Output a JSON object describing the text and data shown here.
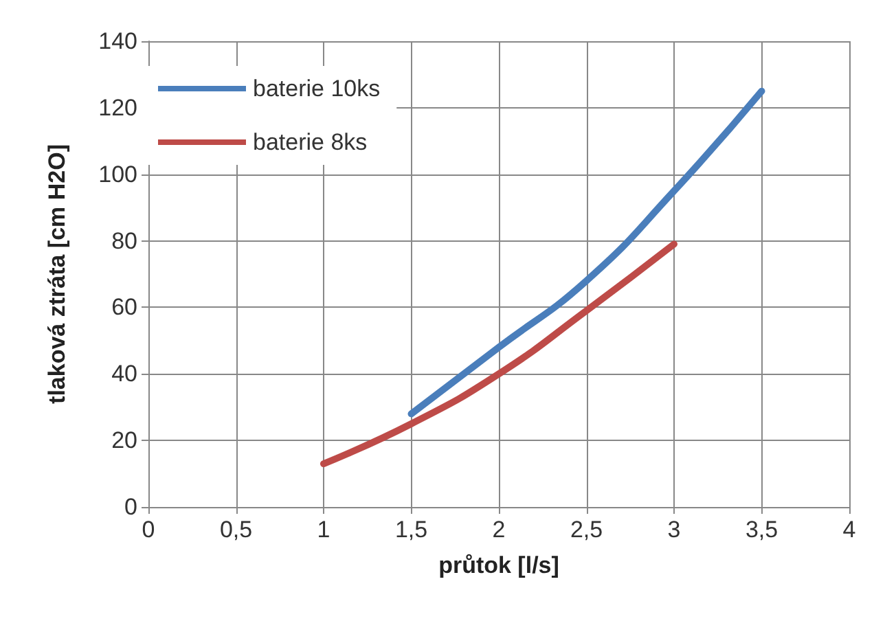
{
  "chart_data": {
    "type": "line",
    "xlabel": "průtok [l/s]",
    "ylabel": "tlaková ztráta [cm H2O]",
    "xlim": [
      0,
      4
    ],
    "xticks": [
      0,
      {
        "value": 0.5,
        "label": "0,5"
      },
      1,
      {
        "value": 1.5,
        "label": "1,5"
      },
      2,
      {
        "value": 2.5,
        "label": "2,5"
      },
      3,
      {
        "value": 3.5,
        "label": "3,5"
      },
      4
    ],
    "ylim": [
      0,
      140
    ],
    "yticks": [
      0,
      20,
      40,
      60,
      80,
      100,
      120,
      140
    ],
    "grid": true,
    "legend": "top left",
    "marker": "none",
    "line_style": "solid",
    "series": [
      {
        "name": "baterie 10ks",
        "color": "#4a7ebb",
        "x": [
          1.5,
          2,
          2.5,
          3,
          3.5
        ],
        "values": [
          28,
          48,
          68,
          95,
          125
        ]
      },
      {
        "name": "baterie 8ks",
        "color": "#be4b48",
        "x": [
          1,
          1.5,
          2,
          2.5,
          3
        ],
        "values": [
          13,
          25,
          40,
          59,
          79
        ]
      }
    ]
  }
}
